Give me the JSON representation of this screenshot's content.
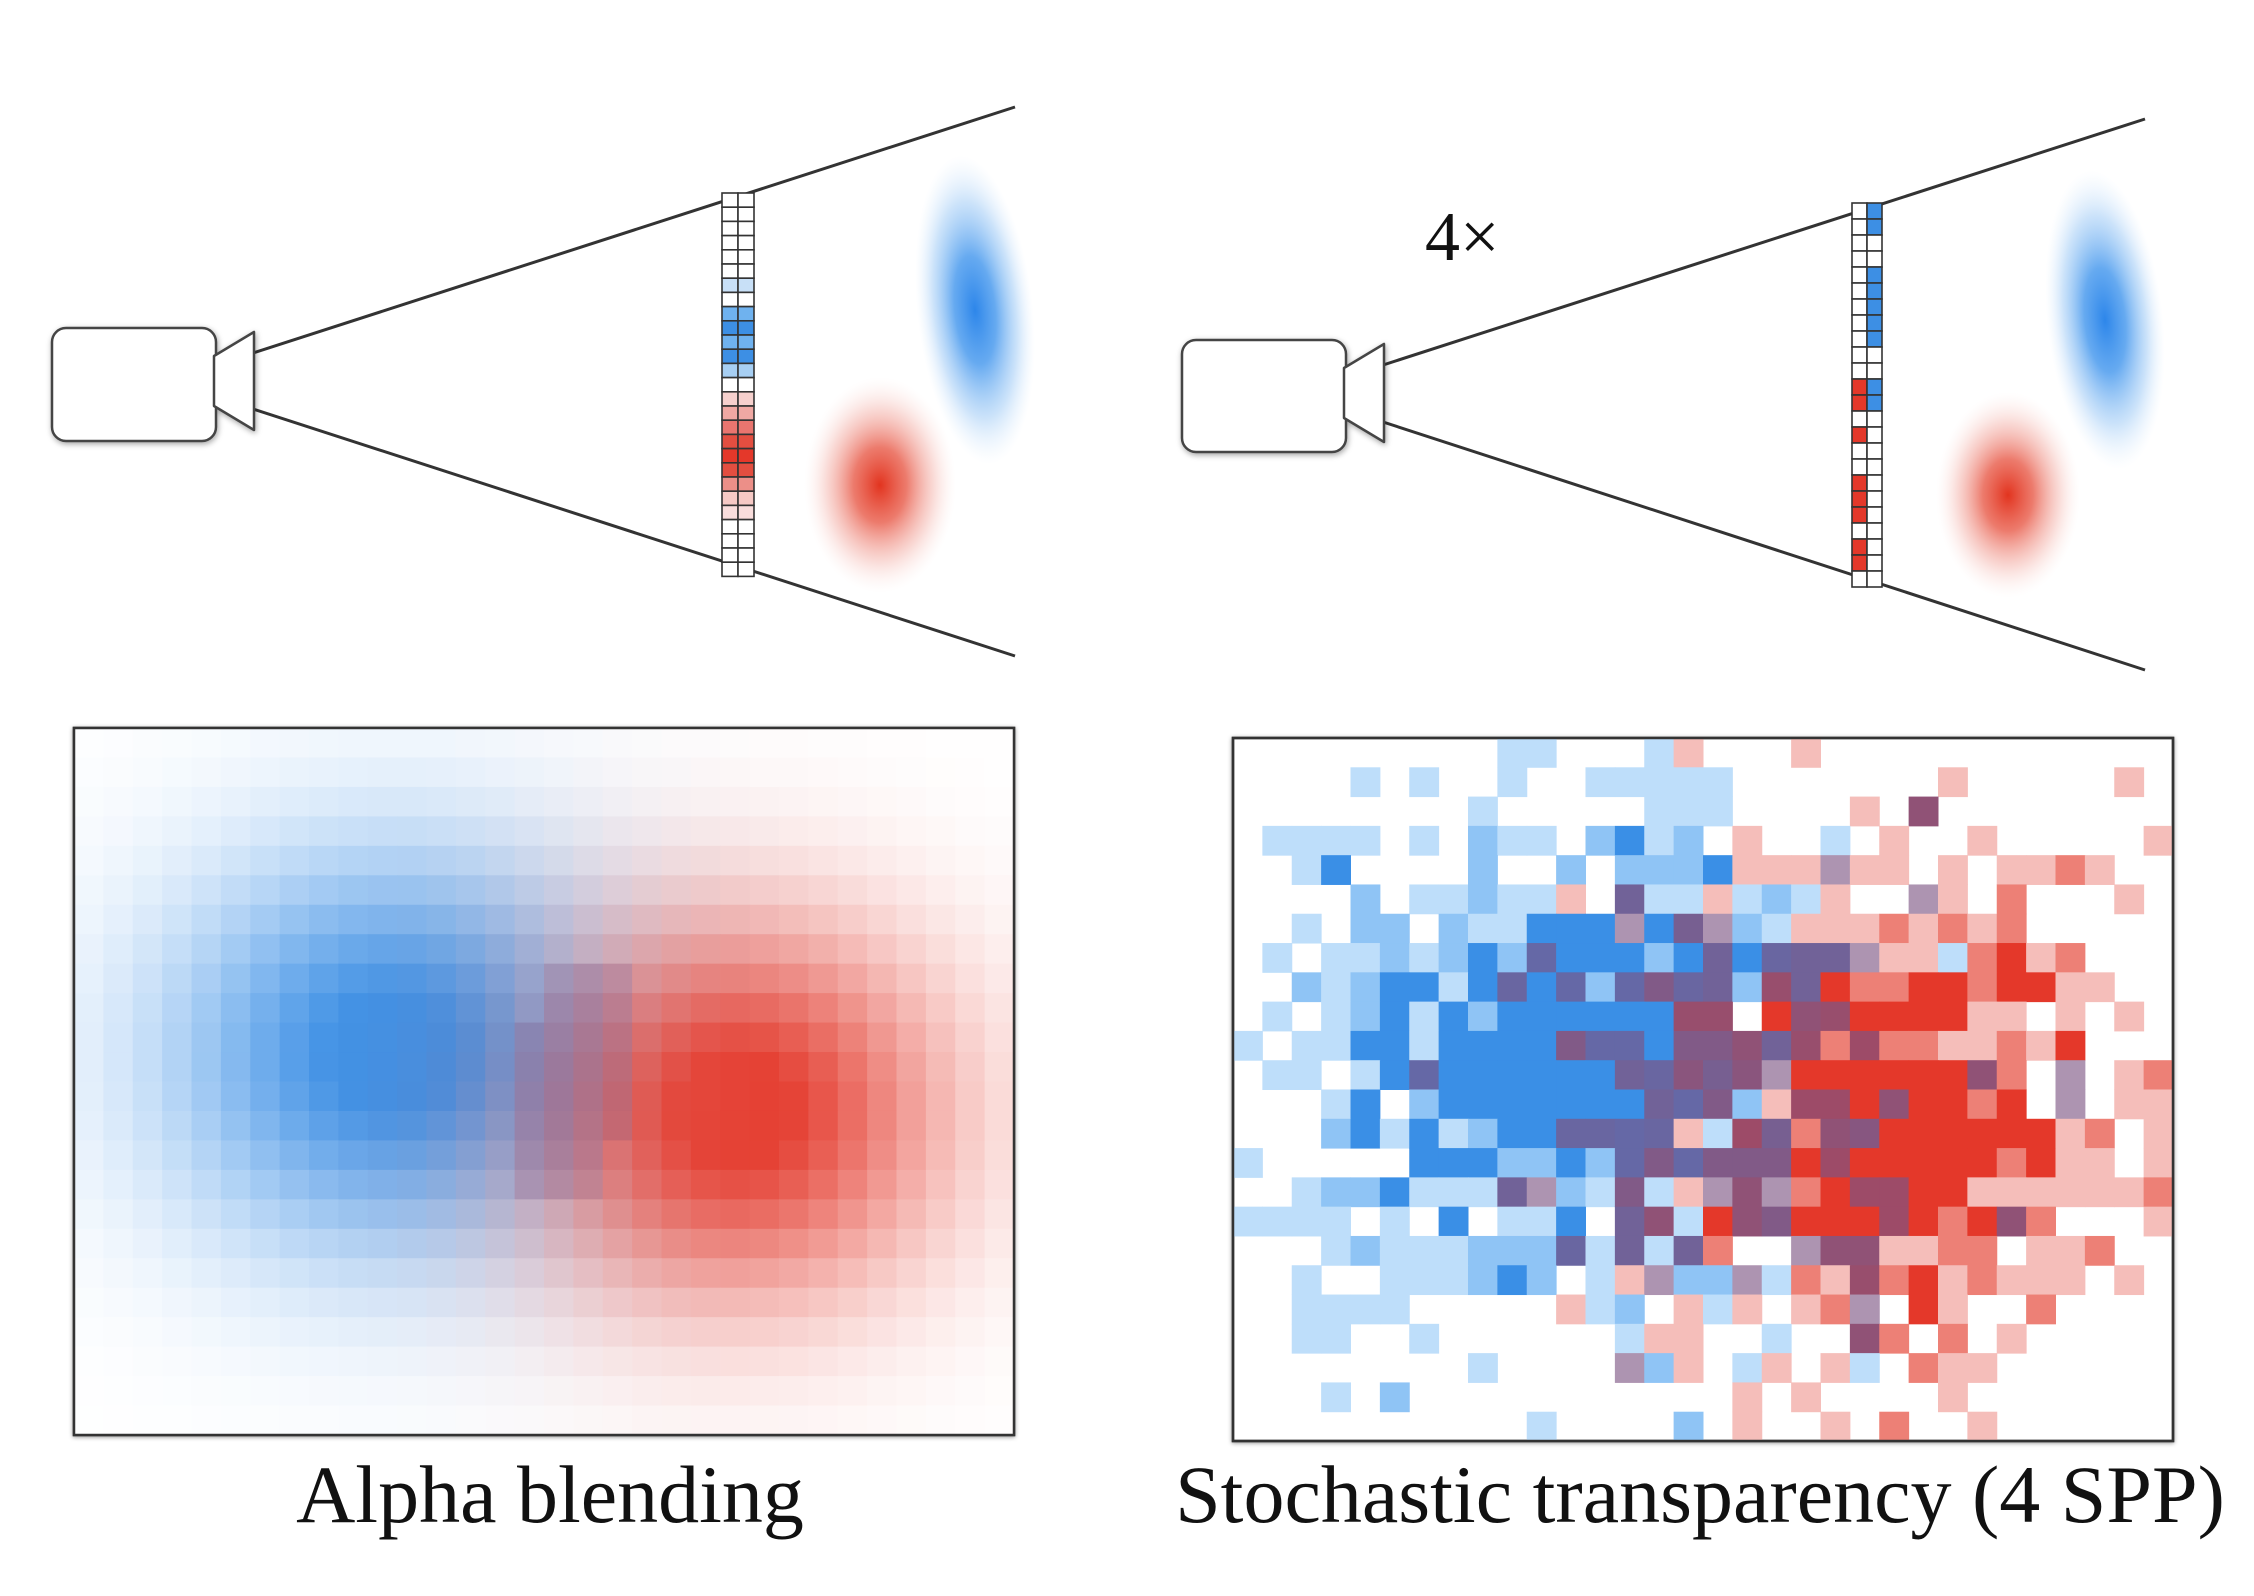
{
  "left_panel": {
    "caption": "Alpha blending",
    "strip_cells": [
      "#ffffff",
      "#ffffff",
      "#ffffff",
      "#ffffff",
      "#ffffff",
      "#ffffff",
      "#c8e0f7",
      "#ffffff",
      "#6fb2ef",
      "#3d8fe4",
      "#6fb2ef",
      "#3d8fe4",
      "#a7cff3",
      "#ffffff",
      "#f6d0cd",
      "#f0a8a3",
      "#e9756f",
      "#e34e40",
      "#e4382a",
      "#e34e40",
      "#ec8f88",
      "#f6c9c5",
      "#f9dddc",
      "#ffffff",
      "#ffffff",
      "#ffffff",
      "#ffffff"
    ]
  },
  "right_panel": {
    "caption": "Stochastic transparency (4 SPP)",
    "samples_label": "4×",
    "strip_cells": [
      [
        "#ffffff",
        "#3d8fe4"
      ],
      [
        "#ffffff",
        "#3d8fe4"
      ],
      [
        "#ffffff",
        "#ffffff"
      ],
      [
        "#ffffff",
        "#ffffff"
      ],
      [
        "#ffffff",
        "#3d8fe4"
      ],
      [
        "#ffffff",
        "#3d8fe4"
      ],
      [
        "#ffffff",
        "#3d8fe4"
      ],
      [
        "#ffffff",
        "#3d8fe4"
      ],
      [
        "#ffffff",
        "#3d8fe4"
      ],
      [
        "#ffffff",
        "#ffffff"
      ],
      [
        "#ffffff",
        "#ffffff"
      ],
      [
        "#e4382a",
        "#3d8fe4"
      ],
      [
        "#e4382a",
        "#3d8fe4"
      ],
      [
        "#ffffff",
        "#ffffff"
      ],
      [
        "#e4382a",
        "#ffffff"
      ],
      [
        "#ffffff",
        "#ffffff"
      ],
      [
        "#ffffff",
        "#ffffff"
      ],
      [
        "#e4382a",
        "#ffffff"
      ],
      [
        "#e4382a",
        "#ffffff"
      ],
      [
        "#e4382a",
        "#ffffff"
      ],
      [
        "#ffffff",
        "#ffffff"
      ],
      [
        "#e4382a",
        "#ffffff"
      ],
      [
        "#e4382a",
        "#ffffff"
      ],
      [
        "#ffffff",
        "#ffffff"
      ]
    ]
  },
  "colors": {
    "blue": "#3a8fe6",
    "red": "#e4382a",
    "mixed": "#6f4e86",
    "line": "#333333",
    "frame": "#333333"
  }
}
